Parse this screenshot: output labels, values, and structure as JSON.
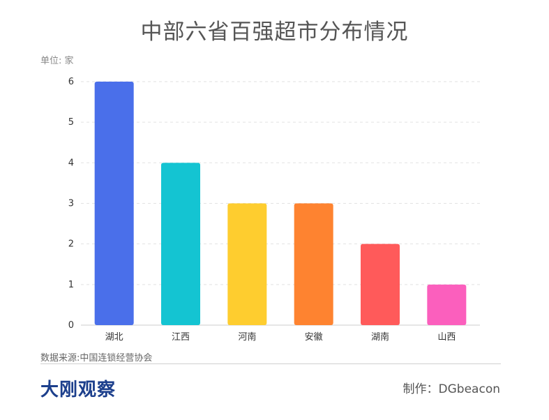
{
  "page": {
    "title": "中部六省百强超市分布情况",
    "unit": "单位: 家",
    "source": "数据来源:中国连锁经营协会",
    "brand": "大刚观察",
    "credit": "制作：DGbeacon"
  },
  "chart_data": {
    "type": "bar",
    "title": "中部六省百强超市分布情况",
    "ylabel": "单位: 家",
    "xlabel": "",
    "categories": [
      "湖北",
      "江西",
      "河南",
      "安徽",
      "湖南",
      "山西"
    ],
    "values": [
      6,
      4,
      3,
      3,
      2,
      1
    ],
    "colors": [
      "#4a6fea",
      "#14c4d2",
      "#fecd2f",
      "#fe8330",
      "#ff5a5a",
      "#fb5fbd"
    ],
    "ylim": [
      0,
      6
    ],
    "yticks": [
      0,
      1,
      2,
      3,
      4,
      5,
      6
    ],
    "grid": true,
    "legend": "none"
  }
}
